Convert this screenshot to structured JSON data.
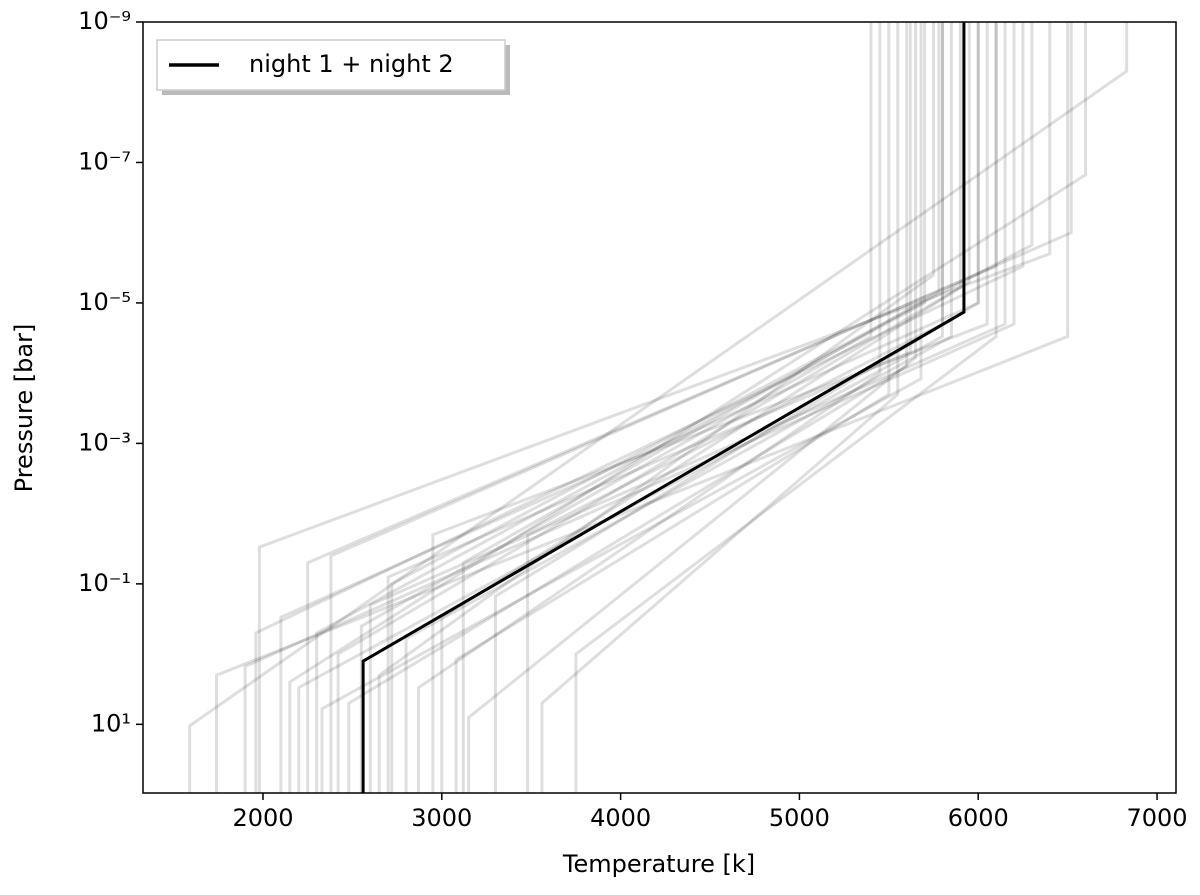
{
  "chart_data": {
    "type": "line",
    "xlabel": "Temperature [k]",
    "ylabel": "Pressure [bar]",
    "xlim": [
      1329,
      7106
    ],
    "ylim": [
      95,
      1e-09
    ],
    "yscale": "log",
    "xticks": [
      2000,
      3000,
      4000,
      5000,
      6000,
      7000
    ],
    "yticks": [
      {
        "value": 10,
        "label": "10¹"
      },
      {
        "value": 0.1,
        "label": "10⁻¹"
      },
      {
        "value": 0.001,
        "label": "10⁻³"
      },
      {
        "value": 1e-05,
        "label": "10⁻⁵"
      },
      {
        "value": 1e-07,
        "label": "10⁻⁷"
      },
      {
        "value": 1e-09,
        "label": "10⁻⁹"
      }
    ],
    "legend": "upper left",
    "series": [
      {
        "name": "night 1 + night 2",
        "color": "#000000",
        "x": [
          2560,
          2560,
          5920,
          5920
        ],
        "values": [
          95,
          1.26,
          1.35e-05,
          1e-09
        ]
      },
      {
        "color": "rgba(0,0,0,0.13)",
        "x": [
          1590,
          1590,
          6830,
          6830
        ],
        "values": [
          95,
          10.5,
          5e-09,
          1e-09
        ]
      },
      {
        "color": "rgba(0,0,0,0.13)",
        "x": [
          1740,
          1740,
          6500,
          6500
        ],
        "values": [
          95,
          2,
          3e-05,
          1e-09
        ]
      },
      {
        "color": "rgba(0,0,0,0.13)",
        "x": [
          1900,
          1900,
          6200,
          6200
        ],
        "values": [
          95,
          1.5,
          2e-05,
          1e-09
        ]
      },
      {
        "color": "rgba(0,0,0,0.13)",
        "x": [
          1980,
          1980,
          6400,
          6400
        ],
        "values": [
          95,
          0.03,
          2e-06,
          1e-09
        ]
      },
      {
        "color": "rgba(0,0,0,0.13)",
        "x": [
          2100,
          2100,
          6000,
          6000
        ],
        "values": [
          95,
          0.3,
          1e-05,
          1e-09
        ]
      },
      {
        "color": "rgba(0,0,0,0.13)",
        "x": [
          2200,
          2200,
          5800,
          5800
        ],
        "values": [
          95,
          3,
          3e-05,
          1e-09
        ]
      },
      {
        "color": "rgba(0,0,0,0.13)",
        "x": [
          2250,
          2250,
          6100,
          6100
        ],
        "values": [
          95,
          0.05,
          3e-06,
          1e-09
        ]
      },
      {
        "color": "rgba(0,0,0,0.13)",
        "x": [
          2300,
          2300,
          5700,
          5700
        ],
        "values": [
          95,
          0.5,
          1e-05,
          1e-09
        ]
      },
      {
        "color": "rgba(0,0,0,0.13)",
        "x": [
          2380,
          2380,
          6520,
          6520
        ],
        "values": [
          95,
          0.04,
          1e-06,
          1e-09
        ]
      },
      {
        "color": "rgba(0,0,0,0.13)",
        "x": [
          2420,
          2420,
          5900,
          5900
        ],
        "values": [
          95,
          1,
          6e-06,
          1e-09
        ]
      },
      {
        "color": "rgba(0,0,0,0.13)",
        "x": [
          2480,
          2480,
          5600,
          5600
        ],
        "values": [
          95,
          5,
          8e-05,
          1e-09
        ]
      },
      {
        "color": "rgba(0,0,0,0.13)",
        "x": [
          2600,
          2600,
          6150,
          6150
        ],
        "values": [
          95,
          0.2,
          2e-05,
          1e-09
        ]
      },
      {
        "color": "rgba(0,0,0,0.13)",
        "x": [
          2650,
          2650,
          5750,
          5750
        ],
        "values": [
          95,
          2,
          4e-06,
          1e-09
        ]
      },
      {
        "color": "rgba(0,0,0,0.13)",
        "x": [
          2720,
          2720,
          6300,
          6300
        ],
        "values": [
          95,
          0.1,
          1.5e-06,
          1e-09
        ]
      },
      {
        "color": "rgba(0,0,0,0.13)",
        "x": [
          2800,
          2800,
          5850,
          5850
        ],
        "values": [
          95,
          0.6,
          3e-05,
          1e-09
        ]
      },
      {
        "color": "rgba(0,0,0,0.13)",
        "x": [
          2870,
          2870,
          5450,
          5450
        ],
        "values": [
          95,
          3,
          0.0001,
          1e-09
        ]
      },
      {
        "color": "rgba(0,0,0,0.13)",
        "x": [
          2950,
          2950,
          6050,
          6050
        ],
        "values": [
          95,
          0.02,
          2e-05,
          1e-09
        ]
      },
      {
        "color": "rgba(0,0,0,0.13)",
        "x": [
          3000,
          3000,
          5950,
          5950
        ],
        "values": [
          95,
          0.3,
          5e-06,
          1e-09
        ]
      },
      {
        "color": "rgba(0,0,0,0.13)",
        "x": [
          3080,
          3080,
          5500,
          5500
        ],
        "values": [
          95,
          1.2,
          0.0002,
          1e-09
        ]
      },
      {
        "color": "rgba(0,0,0,0.13)",
        "x": [
          3150,
          3150,
          5650,
          5650
        ],
        "values": [
          95,
          8,
          6e-05,
          1e-09
        ]
      },
      {
        "color": "rgba(0,0,0,0.13)",
        "x": [
          3300,
          3300,
          6000,
          6000
        ],
        "values": [
          95,
          0.15,
          1e-05,
          1e-09
        ]
      },
      {
        "color": "rgba(0,0,0,0.13)",
        "x": [
          3480,
          3480,
          5800,
          5800
        ],
        "values": [
          95,
          0.02,
          2e-05,
          1e-09
        ]
      },
      {
        "color": "rgba(0,0,0,0.13)",
        "x": [
          3560,
          3560,
          5550,
          5550
        ],
        "values": [
          95,
          5,
          0.0002,
          1e-09
        ]
      },
      {
        "color": "rgba(0,0,0,0.13)",
        "x": [
          3750,
          3750,
          6100,
          6100
        ],
        "values": [
          95,
          1,
          3e-05,
          1e-09
        ]
      },
      {
        "color": "rgba(0,0,0,0.13)",
        "x": [
          2150,
          2150,
          6600,
          6600
        ],
        "values": [
          95,
          2.5,
          1.5e-07,
          1e-09
        ]
      },
      {
        "color": "rgba(0,0,0,0.13)",
        "x": [
          2550,
          2550,
          5400,
          5400
        ],
        "values": [
          95,
          0.4,
          3e-05,
          1e-09
        ]
      },
      {
        "color": "rgba(0,0,0,0.13)",
        "x": [
          2330,
          2330,
          5680,
          5680
        ],
        "values": [
          95,
          6,
          0.00012,
          1e-09
        ]
      },
      {
        "color": "rgba(0,0,0,0.13)",
        "x": [
          1960,
          1960,
          6250,
          6250
        ],
        "values": [
          95,
          0.5,
          3e-06,
          1e-09
        ]
      },
      {
        "color": "rgba(0,0,0,0.13)",
        "x": [
          2700,
          2700,
          5620,
          5620
        ],
        "values": [
          95,
          0.08,
          5e-05,
          1e-09
        ]
      },
      {
        "color": "rgba(0,0,0,0.13)",
        "x": [
          3120,
          3120,
          5780,
          5780
        ],
        "values": [
          95,
          0.05,
          7e-06,
          1e-09
        ]
      }
    ]
  }
}
